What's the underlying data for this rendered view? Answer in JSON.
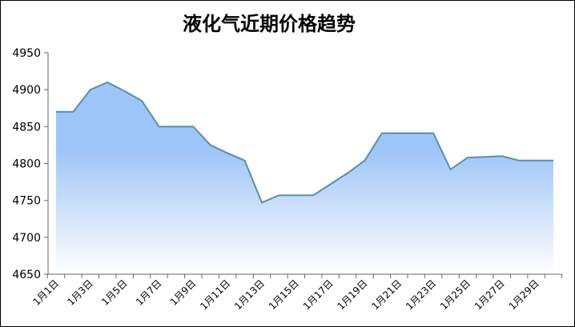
{
  "chart_data": {
    "type": "area",
    "title": "液化气近期价格趋势",
    "categories": [
      "1月1日",
      null,
      "1月3日",
      null,
      "1月5日",
      null,
      "1月7日",
      null,
      "1月9日",
      null,
      "1月11日",
      null,
      "1月13日",
      null,
      "1月15日",
      null,
      "1月17日",
      null,
      "1月19日",
      null,
      "1月21日",
      null,
      "1月23日",
      null,
      "1月25日",
      null,
      "1月27日",
      null,
      "1月29日",
      null
    ],
    "values": [
      4870,
      4870,
      4900,
      4910,
      4898,
      4885,
      4850,
      4850,
      4850,
      4825,
      4814,
      4804,
      4747,
      4757,
      4757,
      4757,
      4772,
      4787,
      4804,
      4841,
      4841,
      4841,
      4841,
      4792,
      4808,
      4809,
      4810,
      4804,
      4804,
      4804
    ],
    "color": "#5b8fa8",
    "fill_top": "#9ec5f7",
    "fill_bottom": "#ffffff",
    "ylim": [
      4650,
      4950
    ],
    "yticks": [
      4650,
      4700,
      4750,
      4800,
      4850,
      4900,
      4950
    ]
  }
}
